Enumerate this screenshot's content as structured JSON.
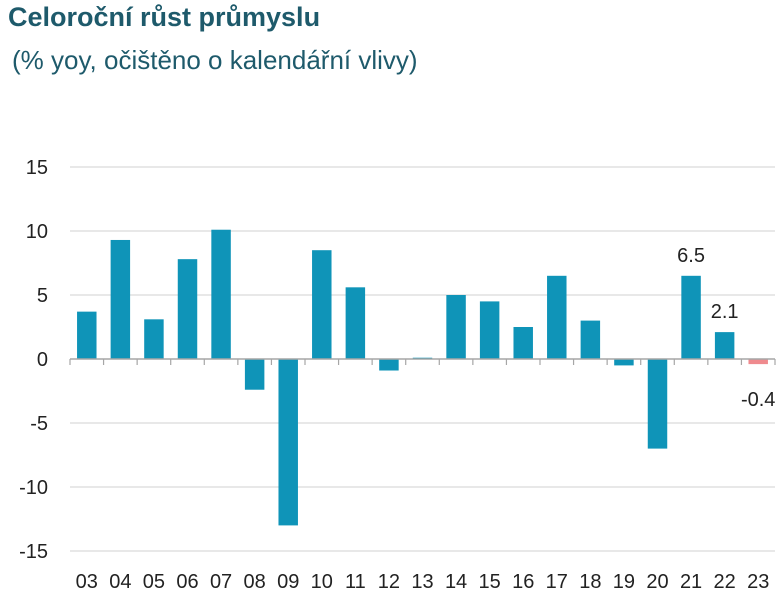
{
  "chart_data": {
    "type": "bar",
    "title": "Celoroční růst průmyslu",
    "subtitle": "(% yoy, očištěno o kalendářní vlivy)",
    "categories": [
      "03",
      "04",
      "05",
      "06",
      "07",
      "08",
      "09",
      "10",
      "11",
      "12",
      "13",
      "14",
      "15",
      "16",
      "17",
      "18",
      "19",
      "20",
      "21",
      "22",
      "23"
    ],
    "values": [
      3.7,
      9.3,
      3.1,
      7.8,
      10.1,
      -2.4,
      -13.0,
      8.5,
      5.6,
      -0.9,
      0.1,
      5.0,
      4.5,
      2.5,
      6.5,
      3.0,
      -0.5,
      -7.0,
      6.5,
      2.1,
      -0.4
    ],
    "data_labels": [
      {
        "index": 18,
        "text": "6.5"
      },
      {
        "index": 19,
        "text": "2.1"
      },
      {
        "index": 20,
        "text": "-0.4"
      }
    ],
    "yticks": [
      15,
      10,
      5,
      0,
      -5,
      -10,
      -15
    ],
    "ylim": [
      -15,
      15
    ],
    "grid": true,
    "colors": {
      "bar": "#0f94b8",
      "highlight": "#ef8a8e",
      "grid": "#d9d9d9",
      "axis": "#a6a6a6",
      "title": "#1e5a6b"
    },
    "highlight_index": 20
  }
}
